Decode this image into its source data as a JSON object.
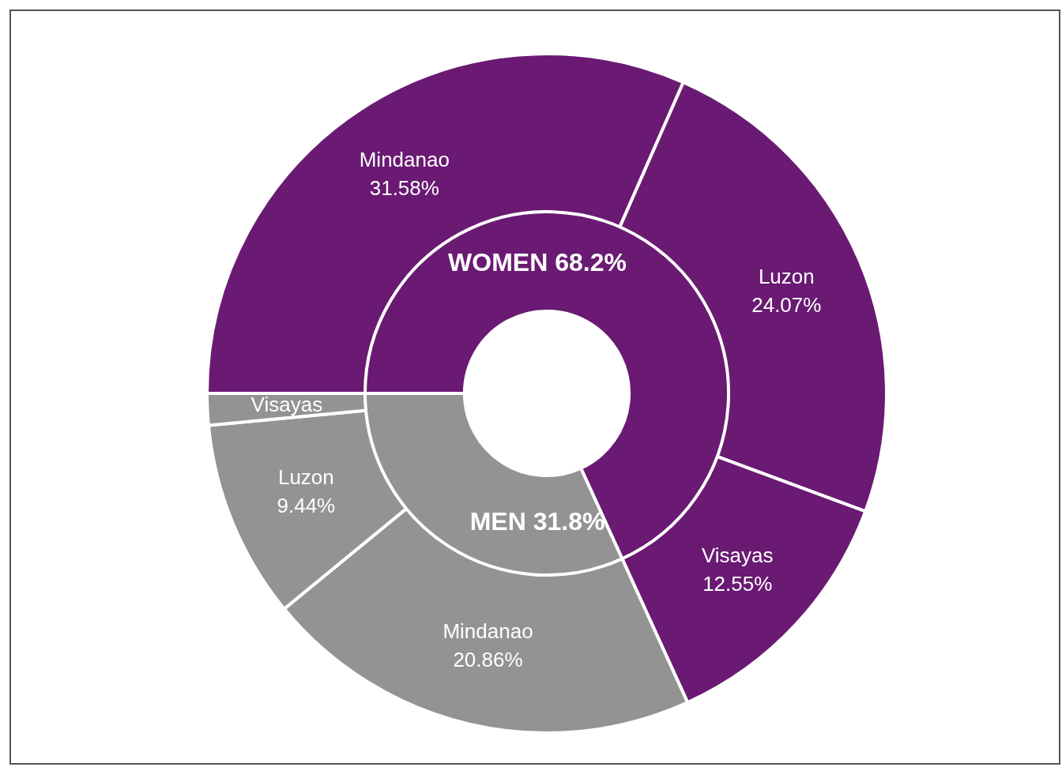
{
  "chart_data": [
    {
      "type": "donut",
      "categories": [
        "WOMEN",
        "MEN"
      ],
      "values": [
        68.2,
        31.8
      ],
      "colors": [
        "#6a1a73",
        "#939393"
      ],
      "value_labels": [
        "68.2%",
        "31.8%"
      ],
      "legend": false
    },
    {
      "type": "donut",
      "categories": [
        "Mindanao",
        "Luzon",
        "Visayas",
        "Mindanao",
        "Luzon",
        "Visayas"
      ],
      "values": [
        31.58,
        24.07,
        12.55,
        20.86,
        9.44,
        1.5
      ],
      "colors": [
        "#6a1a73",
        "#6a1a73",
        "#6a1a73",
        "#939393",
        "#939393",
        "#939393"
      ],
      "value_labels": [
        "31.58%",
        "24.07%",
        "12.55%",
        "20.86%",
        "9.44%",
        null
      ],
      "legend": false
    }
  ]
}
